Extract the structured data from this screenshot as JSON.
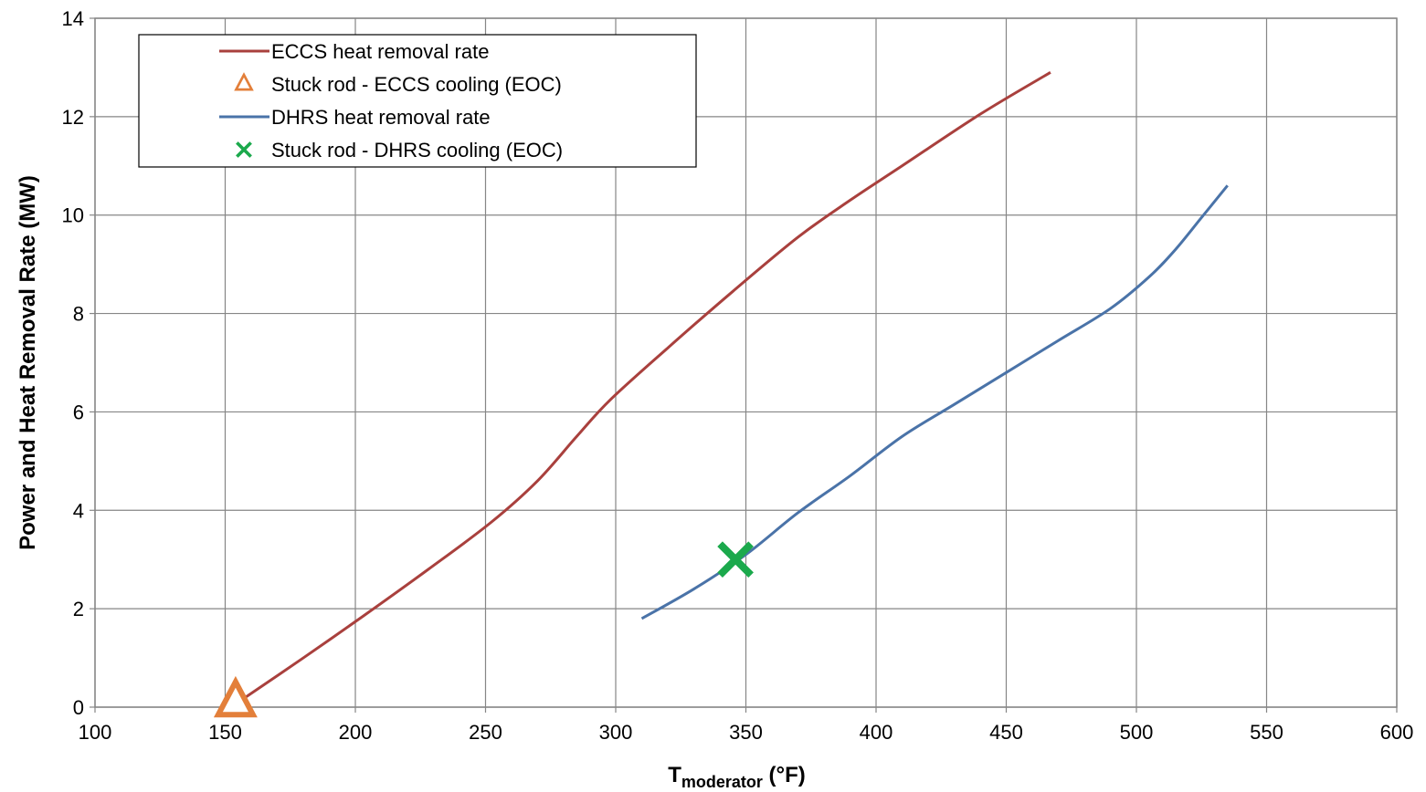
{
  "chart_data": {
    "type": "line",
    "title": "",
    "xlabel_main": "T",
    "xlabel_sub": "moderator",
    "xlabel_unit": " (°F)",
    "ylabel": "Power and Heat Removal Rate (MW)",
    "xlim": [
      100,
      600
    ],
    "ylim": [
      0,
      14
    ],
    "xticks": [
      100,
      150,
      200,
      250,
      300,
      350,
      400,
      450,
      500,
      550,
      600
    ],
    "yticks": [
      0,
      2,
      4,
      6,
      8,
      10,
      12,
      14
    ],
    "grid": true,
    "legend_position": "top-left",
    "series": [
      {
        "name": "ECCS heat removal rate",
        "kind": "line",
        "color": "#A9403D",
        "x": [
          155,
          180,
          203,
          228,
          252,
          270,
          285,
          298,
          320,
          345,
          370,
          390,
          410,
          440,
          467
        ],
        "y": [
          0.1,
          1.0,
          1.85,
          2.8,
          3.75,
          4.6,
          5.5,
          6.25,
          7.3,
          8.45,
          9.55,
          10.3,
          11.0,
          12.05,
          12.9
        ]
      },
      {
        "name": "Stuck rod - ECCS cooling (EOC)",
        "kind": "marker",
        "marker": "triangle",
        "color": "#E37F3A",
        "x": [
          154
        ],
        "y": [
          0.1
        ]
      },
      {
        "name": "DHRS heat removal rate",
        "kind": "line",
        "color": "#4A73A8",
        "x": [
          310,
          330,
          350,
          370,
          390,
          410,
          430,
          450,
          470,
          490,
          505,
          515,
          525,
          535
        ],
        "y": [
          1.8,
          2.4,
          3.1,
          3.95,
          4.7,
          5.5,
          6.15,
          6.8,
          7.45,
          8.1,
          8.75,
          9.3,
          9.95,
          10.6
        ]
      },
      {
        "name": "Stuck rod - DHRS cooling (EOC)",
        "kind": "marker",
        "marker": "x",
        "color": "#1BA94C",
        "x": [
          346
        ],
        "y": [
          3.0
        ]
      }
    ]
  }
}
